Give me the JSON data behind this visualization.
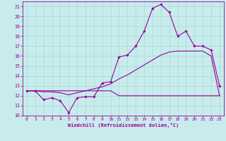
{
  "xlabel": "Windchill (Refroidissement éolien,°C)",
  "bg_color": "#c8ecec",
  "grid_color": "#b0dede",
  "line_color": "#990099",
  "xlim": [
    -0.5,
    23.5
  ],
  "ylim": [
    10,
    21.5
  ],
  "yticks": [
    10,
    11,
    12,
    13,
    14,
    15,
    16,
    17,
    18,
    19,
    20,
    21
  ],
  "xticks": [
    0,
    1,
    2,
    3,
    4,
    5,
    6,
    7,
    8,
    9,
    10,
    11,
    12,
    13,
    14,
    15,
    16,
    17,
    18,
    19,
    20,
    21,
    22,
    23
  ],
  "line1_x": [
    0,
    1,
    2,
    3,
    4,
    5,
    6,
    7,
    8,
    9,
    10,
    11,
    12,
    13,
    14,
    15,
    16,
    17,
    18,
    19,
    20,
    21,
    22,
    23
  ],
  "line1_y": [
    12.5,
    12.5,
    11.6,
    11.8,
    11.5,
    10.3,
    11.8,
    11.9,
    11.9,
    13.3,
    13.4,
    15.9,
    16.1,
    17.0,
    18.5,
    20.8,
    21.2,
    20.4,
    18.0,
    18.5,
    17.0,
    17.0,
    16.6,
    13.0
  ],
  "line2_x": [
    0,
    1,
    2,
    3,
    4,
    5,
    6,
    7,
    8,
    9,
    10,
    11,
    12,
    13,
    14,
    15,
    16,
    17,
    18,
    19,
    20,
    21,
    22,
    23
  ],
  "line2_y": [
    12.5,
    12.5,
    12.5,
    12.5,
    12.5,
    12.5,
    12.5,
    12.5,
    12.5,
    12.5,
    12.5,
    12.0,
    12.0,
    12.0,
    12.0,
    12.0,
    12.0,
    12.0,
    12.0,
    12.0,
    12.0,
    12.0,
    12.0,
    12.0
  ],
  "line3_x": [
    0,
    1,
    2,
    3,
    4,
    5,
    6,
    7,
    8,
    9,
    10,
    11,
    12,
    13,
    14,
    15,
    16,
    17,
    18,
    19,
    20,
    21,
    22,
    23
  ],
  "line3_y": [
    12.5,
    12.5,
    12.4,
    12.4,
    12.3,
    12.1,
    12.3,
    12.5,
    12.7,
    12.9,
    13.2,
    13.7,
    14.1,
    14.6,
    15.1,
    15.6,
    16.1,
    16.4,
    16.5,
    16.5,
    16.5,
    16.5,
    16.0,
    12.0
  ]
}
